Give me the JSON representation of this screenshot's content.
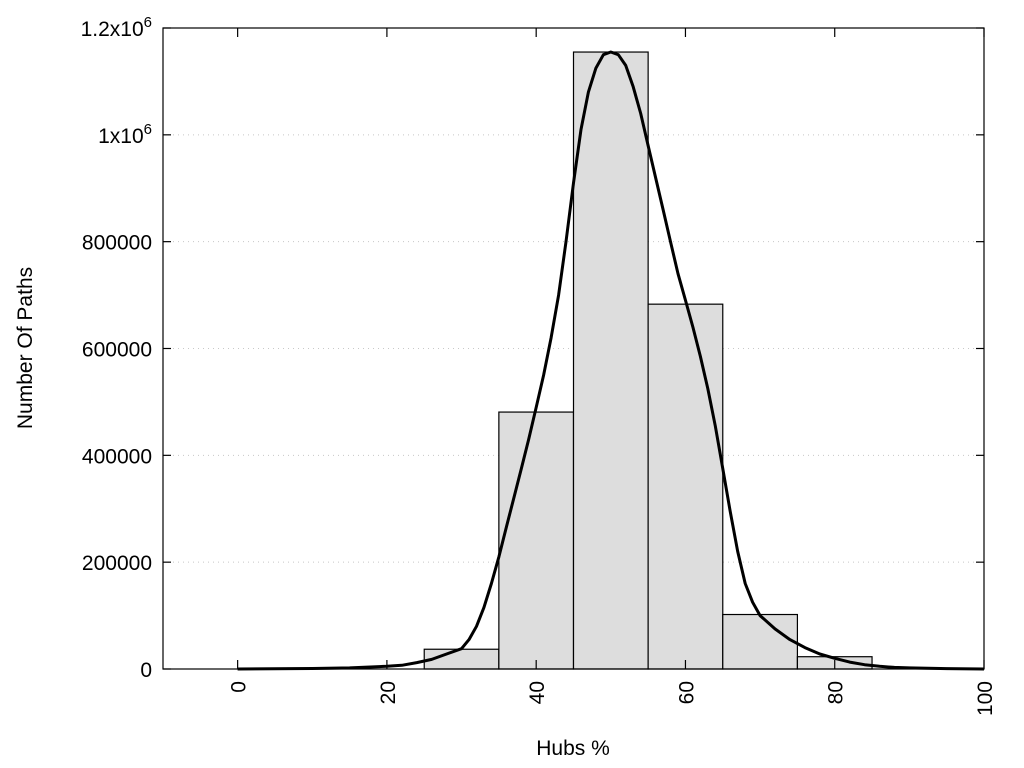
{
  "chart_data": {
    "type": "bar",
    "xlabel": "Hubs %",
    "ylabel": "Number Of Paths",
    "xlim": [
      -10,
      100
    ],
    "ylim": [
      0,
      1200000
    ],
    "x_ticks": [
      {
        "value": 0,
        "label": "0"
      },
      {
        "value": 20,
        "label": "20"
      },
      {
        "value": 40,
        "label": "40"
      },
      {
        "value": 60,
        "label": "60"
      },
      {
        "value": 80,
        "label": "80"
      },
      {
        "value": 100,
        "label": "100"
      }
    ],
    "y_ticks": [
      {
        "value": 0,
        "label": "0"
      },
      {
        "value": 200000,
        "label": "200000"
      },
      {
        "value": 400000,
        "label": "400000"
      },
      {
        "value": 600000,
        "label": "600000"
      },
      {
        "value": 800000,
        "label": "800000"
      },
      {
        "value": 1000000,
        "label": "1x10",
        "sup": "6"
      },
      {
        "value": 1200000,
        "label": "1.2x10",
        "sup": "6"
      }
    ],
    "grid": "horizontal dotted",
    "bar_color": "#dddddd",
    "bins": [
      {
        "x0": 25,
        "x1": 35,
        "value": 37000
      },
      {
        "x0": 35,
        "x1": 45,
        "value": 481000
      },
      {
        "x0": 45,
        "x1": 55,
        "value": 1155000
      },
      {
        "x0": 55,
        "x1": 65,
        "value": 683000
      },
      {
        "x0": 65,
        "x1": 75,
        "value": 102000
      },
      {
        "x0": 75,
        "x1": 85,
        "value": 23000
      }
    ],
    "curve": {
      "x": [
        0,
        10,
        15,
        20,
        22,
        24,
        26,
        28,
        30,
        31,
        32,
        33,
        34,
        35,
        36,
        37,
        38,
        39,
        40,
        41,
        42,
        43,
        44,
        45,
        46,
        47,
        48,
        49,
        50,
        51,
        52,
        53,
        54,
        55,
        56,
        57,
        58,
        59,
        60,
        61,
        62,
        63,
        64,
        65,
        66,
        67,
        68,
        69,
        70,
        72,
        74,
        76,
        78,
        80,
        82,
        84,
        86,
        88,
        90,
        95,
        100
      ],
      "y": [
        0,
        1000,
        2000,
        5000,
        7000,
        12000,
        18000,
        28000,
        38000,
        55000,
        80000,
        115000,
        160000,
        210000,
        265000,
        320000,
        375000,
        430000,
        490000,
        550000,
        620000,
        700000,
        800000,
        910000,
        1010000,
        1080000,
        1125000,
        1150000,
        1155000,
        1150000,
        1130000,
        1090000,
        1040000,
        980000,
        920000,
        860000,
        800000,
        740000,
        690000,
        640000,
        585000,
        525000,
        455000,
        375000,
        295000,
        220000,
        160000,
        125000,
        100000,
        75000,
        55000,
        40000,
        28000,
        20000,
        13000,
        8000,
        5000,
        3000,
        2000,
        800,
        0
      ]
    }
  }
}
